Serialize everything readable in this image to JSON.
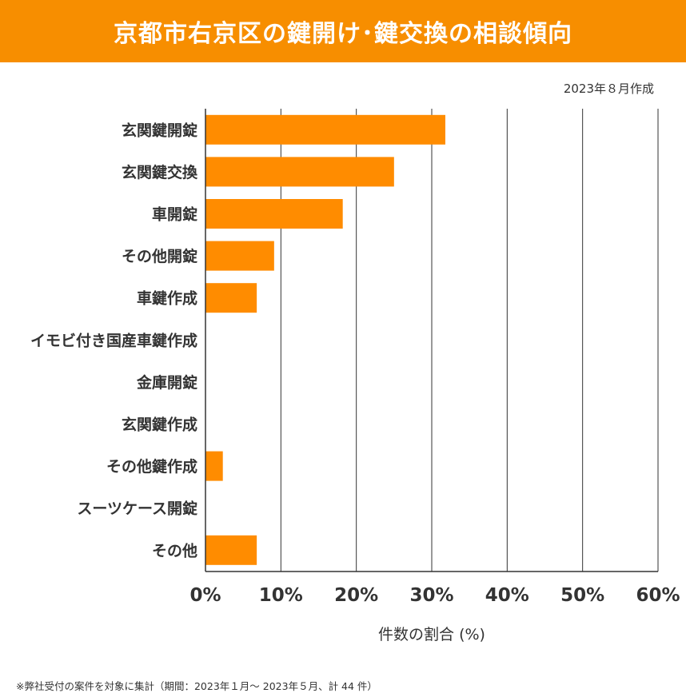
{
  "header": {
    "title": "京都市右京区の鍵開け･鍵交換の相談傾向"
  },
  "created_note": "2023年８月作成",
  "footnote": "※弊社受付の案件を対象に集計（期間：2023年１月～ 2023年５月、計 44 件）",
  "colors": {
    "accent": "#f78e00",
    "bar": "#ff8c00",
    "grid": "#333333"
  },
  "chart_data": {
    "type": "bar",
    "orientation": "horizontal",
    "categories": [
      "玄関鍵開錠",
      "玄関鍵交換",
      "車開錠",
      "その他開錠",
      "車鍵作成",
      "イモビ付き国産車鍵作成",
      "金庫開錠",
      "玄関鍵作成",
      "その他鍵作成",
      "スーツケース開錠",
      "その他"
    ],
    "values": [
      31.8,
      25.0,
      18.2,
      9.1,
      6.8,
      0,
      0,
      0,
      2.3,
      0,
      6.8
    ],
    "xlim": [
      0,
      60
    ],
    "x_ticks": [
      "0%",
      "10%",
      "20%",
      "30%",
      "40%",
      "50%",
      "60%"
    ],
    "xlabel": "件数の割合 (%)",
    "grid": true
  }
}
